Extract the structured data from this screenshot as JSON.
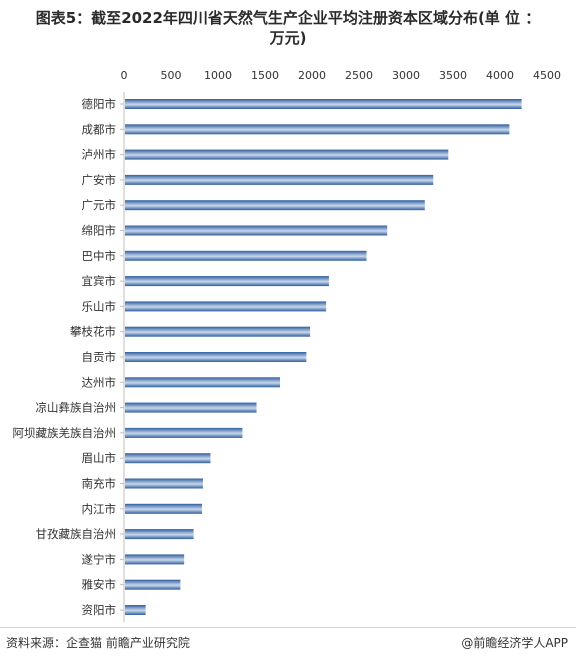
{
  "title_line1": "图表5：截至2022年四川省天然气生产企业平均注册资本区域分布(单 位 ：",
  "title_line2": "万元)",
  "source": "资料来源：企查猫 前瞻产业研究院",
  "credit": "@前瞻经济学人APP",
  "colors": {
    "bar_dark": "#2f5e9f",
    "bar_light": "#c9d8ec"
  },
  "chart_data": {
    "type": "bar",
    "orientation": "horizontal",
    "categories": [
      "德阳市",
      "成都市",
      "泸州市",
      "广安市",
      "广元市",
      "绵阳市",
      "巴中市",
      "宜宾市",
      "乐山市",
      "攀枝花市",
      "自贡市",
      "达州市",
      "凉山彝族自治州",
      "阿坝藏族羌族自治州",
      "眉山市",
      "南充市",
      "内江市",
      "甘孜藏族自治州",
      "遂宁市",
      "雅安市",
      "资阳市"
    ],
    "values": [
      4230,
      4100,
      3450,
      3290,
      3200,
      2800,
      2580,
      2180,
      2150,
      1980,
      1940,
      1660,
      1410,
      1260,
      920,
      840,
      830,
      740,
      640,
      600,
      230
    ],
    "xlim": [
      0,
      4500
    ],
    "xticks": [
      "0",
      "500",
      "1000",
      "1500",
      "2000",
      "2500",
      "3000",
      "3500",
      "4000",
      "4500"
    ],
    "xlabel": "",
    "ylabel": "",
    "grid": false,
    "legend": "none"
  }
}
